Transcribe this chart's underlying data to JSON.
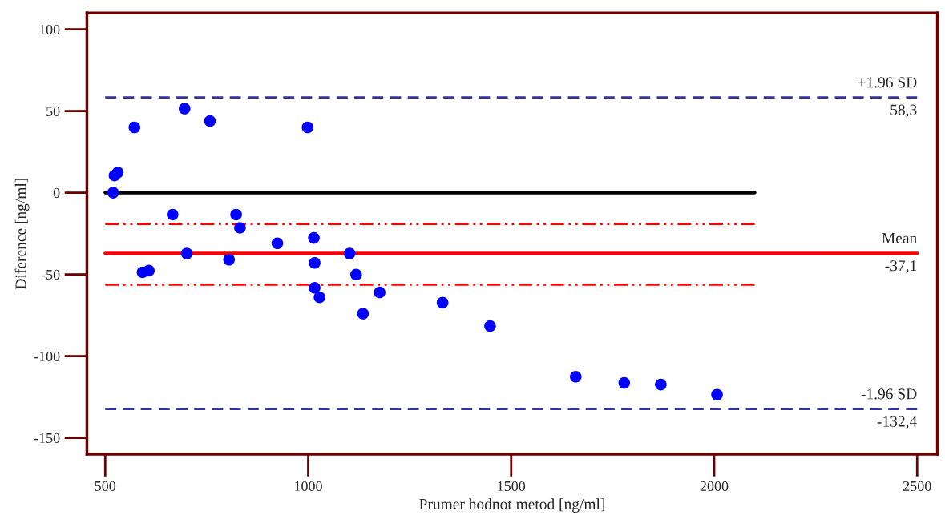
{
  "chart_data": {
    "type": "scatter",
    "xlabel": "Prumer hodnot metod [ng/ml]",
    "ylabel": "Diference [ng/ml]",
    "xlim": [
      455,
      2550
    ],
    "ylim": [
      -160,
      110
    ],
    "xticks": [
      500,
      1000,
      1500,
      2000,
      2500
    ],
    "yticks": [
      -150,
      -100,
      -50,
      0,
      50,
      100
    ],
    "grid": false,
    "legend": false,
    "series": [
      {
        "color": "#0000ff",
        "marker": "circle",
        "x": [
          519.5,
          523,
          531,
          572,
          592,
          607.5,
          666,
          695.5,
          701,
          758,
          805,
          822.5,
          832,
          924,
          998.5,
          1014,
          1016,
          1016,
          1028,
          1102,
          1118,
          1135,
          1176,
          1331,
          1448,
          1659,
          1778.5,
          1868.5,
          2007
        ],
        "values": [
          0,
          10.5,
          12.4,
          40,
          -48.7,
          -47.7,
          -13.4,
          51.5,
          -37.2,
          43.9,
          -41,
          -13.4,
          -21.5,
          -31,
          40,
          -27.7,
          -43,
          -58.2,
          -64,
          -37.2,
          -50.1,
          -74,
          -61,
          -67.3,
          -81.6,
          -112.6,
          -116.4,
          -117.4,
          -123.6
        ]
      },
      {
        "type": "line",
        "color": "#000000",
        "line_style": "solid",
        "x": [
          500,
          2100
        ],
        "values": [
          0,
          0
        ]
      },
      {
        "type": "line",
        "color": "#ff0000",
        "line_style": "dashdot",
        "x": [
          500,
          2100
        ],
        "values": [
          -19.1,
          -19.1
        ]
      },
      {
        "type": "line",
        "color": "#ff0000",
        "line_style": "dashdot",
        "x": [
          500,
          2100
        ],
        "values": [
          -56.3,
          -56.3
        ]
      },
      {
        "type": "line",
        "color": "#ff0000",
        "line_style": "solid",
        "x": [
          500,
          2500
        ],
        "values": [
          -37.1,
          -37.1
        ]
      },
      {
        "type": "line",
        "color": "#333399",
        "line_style": "dashed",
        "x": [
          500,
          2500
        ],
        "values": [
          58.3,
          58.3
        ]
      },
      {
        "type": "line",
        "color": "#333399",
        "line_style": "dashed",
        "x": [
          500,
          2500
        ],
        "values": [
          -132.4,
          -132.4
        ]
      }
    ],
    "annotations": [
      {
        "text": "+1.96 SD",
        "y": 58.3
      },
      {
        "text": "58,3",
        "y": 58.3
      },
      {
        "text": "Mean",
        "y": -37.1
      },
      {
        "text": "-37,1",
        "y": -37.1
      },
      {
        "text": "-1.96 SD",
        "y": -132.4
      },
      {
        "text": "-132,4",
        "y": -132.4
      }
    ]
  }
}
